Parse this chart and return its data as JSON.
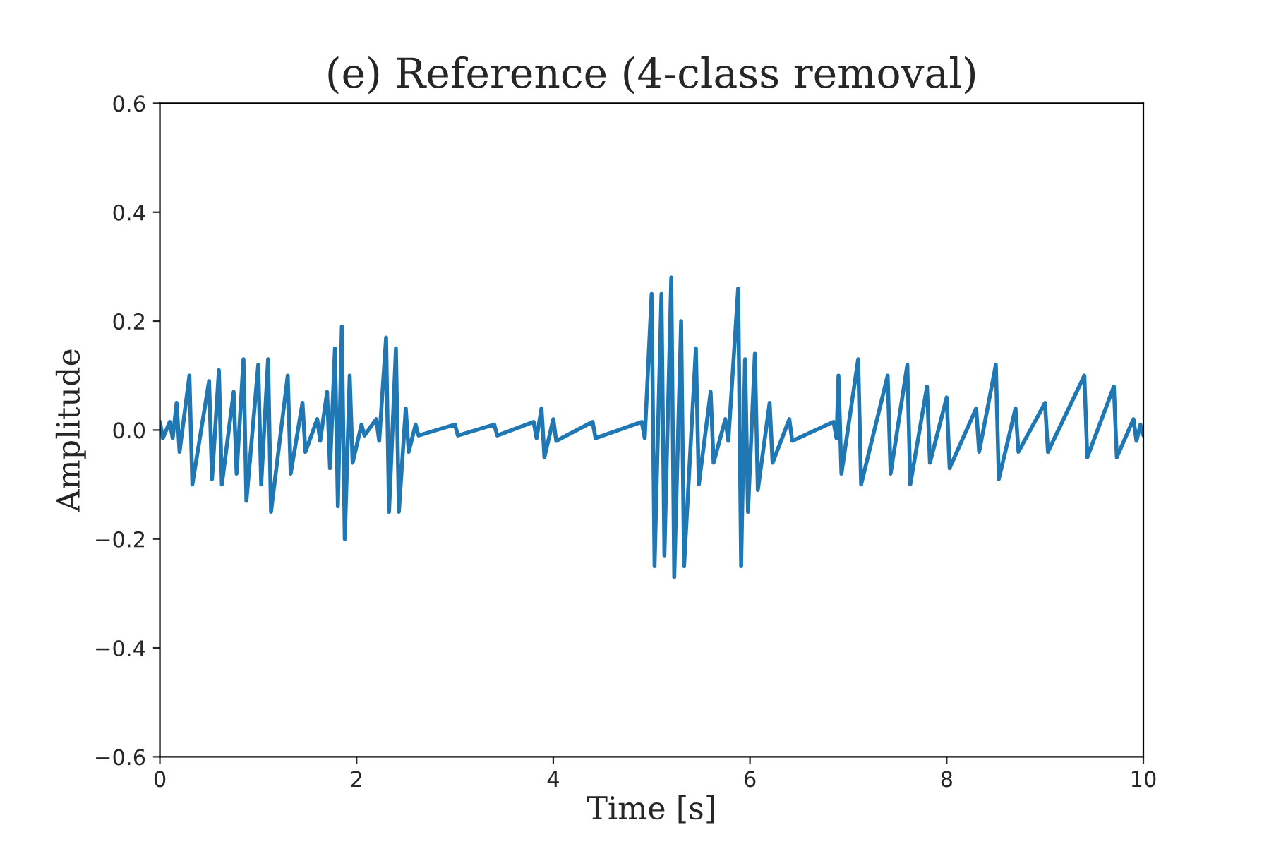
{
  "chart_data": {
    "type": "line",
    "title": "(e) Reference (4-class removal)",
    "xlabel": "Time [s]",
    "ylabel": "Amplitude",
    "x": [
      0.0,
      0.03,
      0.1,
      0.13,
      0.17,
      0.2,
      0.3,
      0.33,
      0.5,
      0.53,
      0.6,
      0.63,
      0.75,
      0.78,
      0.85,
      0.88,
      1.0,
      1.03,
      1.1,
      1.13,
      1.3,
      1.33,
      1.45,
      1.48,
      1.6,
      1.63,
      1.7,
      1.73,
      1.78,
      1.81,
      1.85,
      1.88,
      1.93,
      1.96,
      2.05,
      2.08,
      2.2,
      2.23,
      2.3,
      2.33,
      2.4,
      2.43,
      2.5,
      2.53,
      2.6,
      2.63,
      3.0,
      3.03,
      3.4,
      3.43,
      3.8,
      3.83,
      3.88,
      3.91,
      4.0,
      4.03,
      4.4,
      4.43,
      4.9,
      4.93,
      5.0,
      5.03,
      5.1,
      5.13,
      5.2,
      5.23,
      5.3,
      5.33,
      5.45,
      5.48,
      5.6,
      5.63,
      5.75,
      5.78,
      5.88,
      5.91,
      5.95,
      5.98,
      6.05,
      6.08,
      6.2,
      6.23,
      6.4,
      6.43,
      6.85,
      6.88,
      6.9,
      6.93,
      7.1,
      7.13,
      7.4,
      7.43,
      7.6,
      7.63,
      7.8,
      7.83,
      8.0,
      8.03,
      8.3,
      8.33,
      8.5,
      8.53,
      8.7,
      8.73,
      9.0,
      9.03,
      9.4,
      9.43,
      9.7,
      9.73,
      9.9,
      9.93,
      9.97,
      10.0
    ],
    "series": [
      {
        "color": "#1f77b4",
        "values": [
          0.015,
          -0.015,
          0.015,
          -0.015,
          0.05,
          -0.04,
          0.1,
          -0.1,
          0.09,
          -0.09,
          0.11,
          -0.1,
          0.07,
          -0.08,
          0.13,
          -0.13,
          0.12,
          -0.1,
          0.13,
          -0.15,
          0.1,
          -0.08,
          0.05,
          -0.04,
          0.02,
          -0.02,
          0.07,
          -0.07,
          0.15,
          -0.14,
          0.19,
          -0.2,
          0.1,
          -0.06,
          0.01,
          -0.01,
          0.02,
          -0.02,
          0.17,
          -0.15,
          0.15,
          -0.15,
          0.04,
          -0.04,
          0.01,
          -0.01,
          0.01,
          -0.01,
          0.01,
          -0.01,
          0.015,
          -0.015,
          0.04,
          -0.05,
          0.02,
          -0.02,
          0.015,
          -0.015,
          0.015,
          -0.015,
          0.25,
          -0.25,
          0.25,
          -0.23,
          0.28,
          -0.27,
          0.2,
          -0.25,
          0.15,
          -0.1,
          0.07,
          -0.06,
          0.02,
          -0.02,
          0.26,
          -0.25,
          0.13,
          -0.15,
          0.14,
          -0.11,
          0.05,
          -0.06,
          0.02,
          -0.02,
          0.015,
          -0.015,
          0.1,
          -0.08,
          0.13,
          -0.1,
          0.1,
          -0.08,
          0.12,
          -0.1,
          0.08,
          -0.06,
          0.06,
          -0.07,
          0.04,
          -0.04,
          0.12,
          -0.09,
          0.04,
          -0.04,
          0.05,
          -0.04,
          0.1,
          -0.05,
          0.08,
          -0.05,
          0.02,
          -0.02,
          0.01,
          -0.01
        ]
      }
    ],
    "xlim": [
      0,
      10
    ],
    "xticks": [
      0,
      2,
      4,
      6,
      8,
      10
    ],
    "ylim": [
      -0.6,
      0.6
    ],
    "yticks": [
      {
        "value": -0.6,
        "label": "−0.6"
      },
      {
        "value": -0.4,
        "label": "−0.4"
      },
      {
        "value": -0.2,
        "label": "−0.2"
      },
      {
        "value": 0.0,
        "label": "0.0"
      },
      {
        "value": 0.2,
        "label": "0.2"
      },
      {
        "value": 0.4,
        "label": "0.4"
      },
      {
        "value": 0.6,
        "label": "0.6"
      }
    ],
    "grid": false,
    "marker": "none",
    "line_style": "solid"
  }
}
